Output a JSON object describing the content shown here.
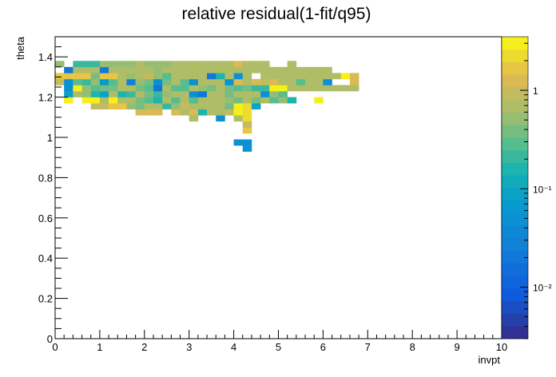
{
  "chart_data": {
    "type": "heatmap",
    "title": "relative residual(1-fit/q95)",
    "xlabel": "invpt",
    "ylabel": "theta",
    "xlim": [
      0,
      10
    ],
    "ylim": [
      0,
      1.5
    ],
    "x_ticks": [
      "0",
      "1",
      "2",
      "3",
      "4",
      "5",
      "6",
      "7",
      "8",
      "9",
      "10"
    ],
    "y_ticks": [
      "0",
      "0.2",
      "0.4",
      "0.6",
      "0.8",
      "1",
      "1.2",
      "1.4"
    ],
    "colorbar": {
      "scale": "log",
      "range": [
        0.003,
        3.5
      ],
      "tick_values": [
        0.01,
        0.1,
        1
      ],
      "tick_labels": [
        "10⁻²",
        "10⁻¹",
        "1"
      ]
    },
    "bin_size": {
      "x": 0.2,
      "y": 0.03
    },
    "rows": [
      {
        "y0": 0.96,
        "cells": [
          [
            4.0,
            0.05
          ],
          [
            4.2,
            0.05
          ]
        ]
      },
      {
        "y0": 0.93,
        "cells": [
          [
            4.2,
            0.05
          ]
        ]
      },
      {
        "y0": 1.02,
        "cells": [
          [
            4.2,
            1.5
          ]
        ]
      },
      {
        "y0": 1.05,
        "cells": [
          [
            4.2,
            1.0
          ]
        ]
      },
      {
        "y0": 1.08,
        "cells": [
          [
            3.0,
            0.6
          ],
          [
            3.6,
            0.05
          ],
          [
            4.0,
            0.6
          ],
          [
            4.2,
            2.5
          ]
        ]
      },
      {
        "y0": 1.11,
        "cells": [
          [
            1.8,
            1.2
          ],
          [
            2.0,
            1.2
          ],
          [
            2.2,
            1.2
          ],
          [
            2.6,
            1.2
          ],
          [
            2.8,
            0.8
          ],
          [
            3.0,
            1.2
          ],
          [
            3.2,
            0.15
          ],
          [
            3.4,
            0.8
          ],
          [
            3.6,
            0.8
          ],
          [
            3.8,
            1.0
          ],
          [
            4.0,
            3.0
          ],
          [
            4.2,
            2.0
          ]
        ]
      },
      {
        "y0": 1.14,
        "cells": [
          [
            0.8,
            1.0
          ],
          [
            1.0,
            1.0
          ],
          [
            1.2,
            1.5
          ],
          [
            1.4,
            1.5
          ],
          [
            1.6,
            0.5
          ],
          [
            1.8,
            0.4
          ],
          [
            2.0,
            0.6
          ],
          [
            2.2,
            0.6
          ],
          [
            2.4,
            0.2
          ],
          [
            2.6,
            0.5
          ],
          [
            2.8,
            1.0
          ],
          [
            3.0,
            0.8
          ],
          [
            3.2,
            0.6
          ],
          [
            3.4,
            0.6
          ],
          [
            3.6,
            0.6
          ],
          [
            3.8,
            0.4
          ],
          [
            4.0,
            3.0
          ],
          [
            4.2,
            2.5
          ],
          [
            4.4,
            0.08
          ]
        ]
      },
      {
        "y0": 1.17,
        "cells": [
          [
            0.2,
            3.0
          ],
          [
            0.6,
            3.0
          ],
          [
            0.8,
            3.0
          ],
          [
            1.0,
            0.6
          ],
          [
            1.2,
            3.0
          ],
          [
            1.4,
            0.8
          ],
          [
            1.6,
            0.6
          ],
          [
            1.8,
            0.4
          ],
          [
            2.0,
            0.3
          ],
          [
            2.2,
            0.15
          ],
          [
            2.4,
            0.8
          ],
          [
            2.6,
            0.25
          ],
          [
            2.8,
            0.6
          ],
          [
            3.0,
            0.25
          ],
          [
            3.2,
            0.8
          ],
          [
            3.4,
            0.6
          ],
          [
            3.6,
            0.6
          ],
          [
            3.8,
            0.5
          ],
          [
            4.0,
            0.4
          ],
          [
            4.2,
            0.6
          ],
          [
            4.4,
            0.4
          ],
          [
            4.6,
            0.6
          ],
          [
            4.8,
            0.3
          ],
          [
            5.0,
            0.5
          ],
          [
            5.2,
            0.15
          ],
          [
            5.8,
            3.0
          ]
        ]
      },
      {
        "y0": 1.2,
        "cells": [
          [
            0.2,
            0.08
          ],
          [
            0.4,
            0.6
          ],
          [
            0.6,
            0.5
          ],
          [
            0.8,
            0.15
          ],
          [
            1.0,
            0.08
          ],
          [
            1.2,
            0.6
          ],
          [
            1.4,
            0.15
          ],
          [
            1.6,
            0.2
          ],
          [
            1.8,
            0.6
          ],
          [
            2.0,
            0.4
          ],
          [
            2.2,
            0.2
          ],
          [
            2.4,
            0.5
          ],
          [
            2.6,
            0.8
          ],
          [
            2.8,
            0.6
          ],
          [
            3.0,
            0.05
          ],
          [
            3.2,
            0.02
          ],
          [
            3.4,
            0.8
          ],
          [
            3.6,
            0.6
          ],
          [
            3.8,
            0.4
          ],
          [
            4.0,
            0.6
          ],
          [
            4.2,
            0.8
          ],
          [
            4.4,
            0.6
          ],
          [
            4.6,
            0.05
          ],
          [
            4.8,
            0.5
          ],
          [
            5.0,
            0.3
          ]
        ]
      },
      {
        "y0": 1.23,
        "cells": [
          [
            0.2,
            0.05
          ],
          [
            0.4,
            3.0
          ],
          [
            0.6,
            0.5
          ],
          [
            0.8,
            0.3
          ],
          [
            1.0,
            0.4
          ],
          [
            1.2,
            0.4
          ],
          [
            1.4,
            0.6
          ],
          [
            1.6,
            0.8
          ],
          [
            1.8,
            0.4
          ],
          [
            2.0,
            0.3
          ],
          [
            2.2,
            0.02
          ],
          [
            2.4,
            0.8
          ],
          [
            2.6,
            0.3
          ],
          [
            2.8,
            0.25
          ],
          [
            3.0,
            0.6
          ],
          [
            3.2,
            0.5
          ],
          [
            3.4,
            0.4
          ],
          [
            3.6,
            0.6
          ],
          [
            3.8,
            0.4
          ],
          [
            4.0,
            0.3
          ],
          [
            4.2,
            0.4
          ],
          [
            4.4,
            0.2
          ],
          [
            4.6,
            0.2
          ],
          [
            4.8,
            3.0
          ],
          [
            5.0,
            3.0
          ],
          [
            5.2,
            0.6
          ],
          [
            5.4,
            0.8
          ],
          [
            5.6,
            0.8
          ],
          [
            5.8,
            0.8
          ],
          [
            6.0,
            0.8
          ],
          [
            6.2,
            0.8
          ],
          [
            6.4,
            0.8
          ],
          [
            6.6,
            0.8
          ]
        ]
      },
      {
        "y0": 1.26,
        "cells": [
          [
            0.0,
            1.0
          ],
          [
            0.2,
            0.05
          ],
          [
            0.4,
            0.3
          ],
          [
            0.6,
            0.2
          ],
          [
            0.8,
            0.5
          ],
          [
            1.0,
            0.06
          ],
          [
            1.2,
            0.3
          ],
          [
            1.4,
            0.6
          ],
          [
            1.6,
            0.03
          ],
          [
            1.8,
            0.5
          ],
          [
            2.0,
            0.4
          ],
          [
            2.2,
            0.05
          ],
          [
            2.4,
            0.4
          ],
          [
            2.6,
            0.6
          ],
          [
            2.8,
            0.3
          ],
          [
            3.0,
            0.05
          ],
          [
            3.2,
            0.8
          ],
          [
            3.4,
            0.8
          ],
          [
            3.6,
            0.6
          ],
          [
            3.8,
            0.05
          ],
          [
            4.0,
            1.2
          ],
          [
            4.2,
            0.6
          ],
          [
            4.4,
            1.2
          ],
          [
            4.6,
            1.0
          ],
          [
            4.8,
            1.2
          ],
          [
            5.0,
            0.6
          ],
          [
            5.2,
            0.6
          ],
          [
            5.4,
            0.3
          ],
          [
            5.6,
            0.8
          ],
          [
            5.8,
            0.6
          ],
          [
            6.0,
            0.05
          ],
          [
            6.6,
            1.2
          ]
        ]
      },
      {
        "y0": 1.29,
        "cells": [
          [
            0.0,
            1.5
          ],
          [
            0.2,
            1.5
          ],
          [
            0.4,
            1.5
          ],
          [
            0.6,
            1.5
          ],
          [
            0.8,
            0.4
          ],
          [
            1.0,
            1.5
          ],
          [
            1.2,
            1.5
          ],
          [
            1.4,
            0.6
          ],
          [
            1.6,
            0.5
          ],
          [
            1.8,
            0.6
          ],
          [
            2.0,
            1.0
          ],
          [
            2.2,
            0.5
          ],
          [
            2.4,
            0.3
          ],
          [
            2.6,
            0.6
          ],
          [
            2.8,
            0.6
          ],
          [
            3.0,
            0.6
          ],
          [
            3.2,
            0.6
          ],
          [
            3.4,
            0.02
          ],
          [
            3.6,
            0.15
          ],
          [
            3.8,
            0.6
          ],
          [
            4.0,
            0.05
          ],
          [
            4.2,
            0.6
          ],
          [
            4.6,
            0.8
          ],
          [
            4.8,
            0.6
          ],
          [
            5.0,
            0.6
          ],
          [
            5.2,
            0.8
          ],
          [
            5.4,
            0.6
          ],
          [
            5.6,
            0.8
          ],
          [
            5.8,
            0.8
          ],
          [
            6.0,
            0.8
          ],
          [
            6.2,
            0.8
          ],
          [
            6.4,
            3.0
          ],
          [
            6.6,
            1.2
          ]
        ]
      },
      {
        "y0": 1.32,
        "cells": [
          [
            0.2,
            0.02
          ],
          [
            0.4,
            0.6
          ],
          [
            0.6,
            0.6
          ],
          [
            0.8,
            0.6
          ],
          [
            1.0,
            0.02
          ],
          [
            1.2,
            0.6
          ],
          [
            1.4,
            0.6
          ],
          [
            1.6,
            0.6
          ],
          [
            1.8,
            0.6
          ],
          [
            2.0,
            0.8
          ],
          [
            2.2,
            0.5
          ],
          [
            2.4,
            0.6
          ],
          [
            2.6,
            0.8
          ],
          [
            2.8,
            0.8
          ],
          [
            3.0,
            0.6
          ],
          [
            3.2,
            0.8
          ],
          [
            3.4,
            0.6
          ],
          [
            3.6,
            0.8
          ],
          [
            3.8,
            0.8
          ],
          [
            4.0,
            0.8
          ],
          [
            4.2,
            0.6
          ],
          [
            4.4,
            0.8
          ],
          [
            4.6,
            0.8
          ],
          [
            4.8,
            0.6
          ],
          [
            5.0,
            0.8
          ],
          [
            5.2,
            0.8
          ],
          [
            5.4,
            0.8
          ],
          [
            5.6,
            0.8
          ],
          [
            5.8,
            0.8
          ],
          [
            6.0,
            0.8
          ]
        ]
      },
      {
        "y0": 1.35,
        "cells": [
          [
            0.0,
            0.5
          ],
          [
            0.4,
            0.2
          ],
          [
            0.6,
            0.2
          ],
          [
            0.8,
            0.2
          ],
          [
            1.0,
            0.5
          ],
          [
            1.2,
            0.5
          ],
          [
            1.4,
            0.5
          ],
          [
            1.6,
            0.5
          ],
          [
            1.8,
            0.6
          ],
          [
            2.0,
            0.5
          ],
          [
            2.2,
            0.5
          ],
          [
            2.4,
            0.5
          ],
          [
            2.6,
            0.8
          ],
          [
            2.8,
            0.8
          ],
          [
            3.0,
            0.6
          ],
          [
            3.2,
            0.8
          ],
          [
            3.4,
            0.8
          ],
          [
            3.6,
            0.8
          ],
          [
            3.8,
            0.8
          ],
          [
            4.0,
            1.2
          ],
          [
            4.2,
            0.8
          ],
          [
            4.4,
            0.6
          ],
          [
            4.6,
            0.8
          ],
          [
            5.2,
            0.8
          ]
        ]
      }
    ]
  }
}
